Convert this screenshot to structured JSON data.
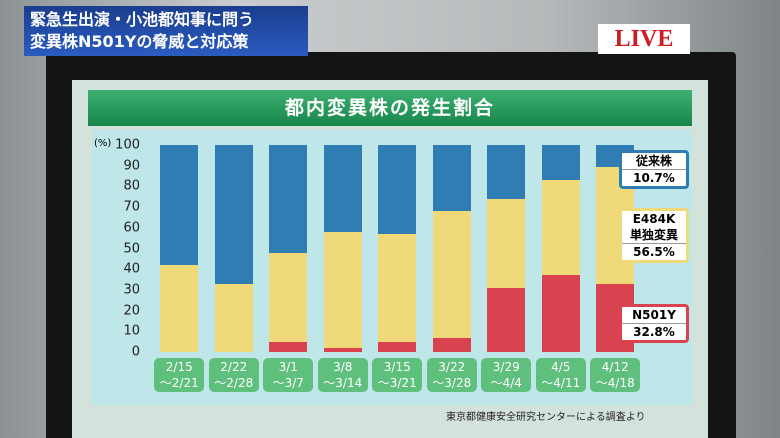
{
  "caption": {
    "line1": "緊急生出演・小池都知事に問う",
    "line2": "変異株N501Yの脅威と対応策"
  },
  "live": "LIVE",
  "chart_data": {
    "type": "stacked_bar",
    "title": "都内変異株の発生割合",
    "y_label": "(%)",
    "source": "東京都健康安全研究センターによる調査より",
    "categories": [
      "2/15\n〜2/21",
      "2/22\n〜2/28",
      "3/1\n〜3/7",
      "3/8\n〜3/14",
      "3/15\n〜3/21",
      "3/22\n〜3/28",
      "3/29\n〜4/4",
      "4/5\n〜4/11",
      "4/12\n〜4/18"
    ],
    "series": [
      {
        "name": "N501Y",
        "color": "#d8434f",
        "values": [
          0,
          0,
          5,
          2,
          5,
          7,
          31,
          37,
          32.8
        ],
        "value_labels": [
          null,
          null,
          null,
          null,
          null,
          null,
          null,
          null,
          "32.8%"
        ]
      },
      {
        "name": "E484K\n単独変異",
        "color": "#efd978",
        "values": [
          42,
          33,
          43,
          56,
          52,
          61,
          43,
          46,
          56.5
        ],
        "value_labels": [
          null,
          null,
          null,
          null,
          null,
          null,
          null,
          null,
          "56.5%"
        ]
      },
      {
        "name": "従来株",
        "color": "#2f7db3",
        "values": [
          58,
          67,
          52,
          42,
          43,
          32,
          26,
          17,
          10.7
        ],
        "value_labels": [
          null,
          null,
          null,
          null,
          null,
          null,
          null,
          null,
          "10.7%"
        ]
      }
    ],
    "ylim": [
      0,
      100
    ],
    "yticks": [
      0,
      10,
      20,
      30,
      40,
      50,
      60,
      70,
      80,
      90,
      100
    ],
    "grid": false
  }
}
